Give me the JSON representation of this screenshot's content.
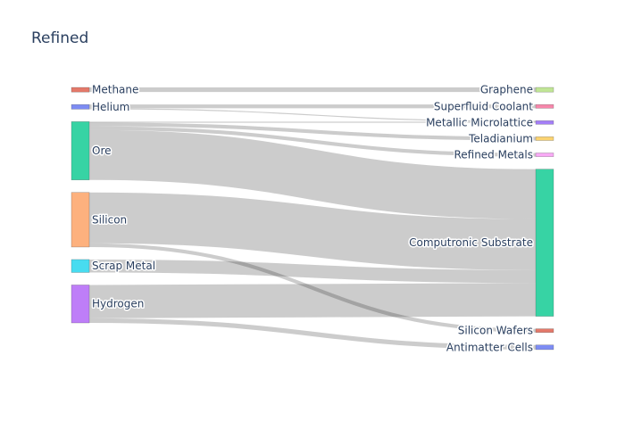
{
  "chart_data": {
    "type": "sankey",
    "title": "Refined",
    "nodes": [
      {
        "id": "methane",
        "label": "Methane",
        "column": 0,
        "color": "#e4796a"
      },
      {
        "id": "helium",
        "label": "Helium",
        "column": 0,
        "color": "#7d8cf3"
      },
      {
        "id": "ore",
        "label": "Ore",
        "column": 0,
        "color": "#37d3a4"
      },
      {
        "id": "silicon",
        "label": "Silicon",
        "column": 0,
        "color": "#fdb17e"
      },
      {
        "id": "scrap_metal",
        "label": "Scrap Metal",
        "column": 0,
        "color": "#48dcf0"
      },
      {
        "id": "hydrogen",
        "label": "Hydrogen",
        "column": 0,
        "color": "#be7ef8"
      },
      {
        "id": "graphene",
        "label": "Graphene",
        "column": 1,
        "color": "#c0e596"
      },
      {
        "id": "superfluid_coolant",
        "label": "Superfluid Coolant",
        "column": 1,
        "color": "#f786ab"
      },
      {
        "id": "metallic_microlattice",
        "label": "Metallic Microlattice",
        "column": 1,
        "color": "#a47ef7"
      },
      {
        "id": "teladianium",
        "label": "Teladianium",
        "column": 1,
        "color": "#fbd371"
      },
      {
        "id": "refined_metals",
        "label": "Refined Metals",
        "column": 1,
        "color": "#f8a9f5"
      },
      {
        "id": "computronic_substrate",
        "label": "Computronic Substrate",
        "column": 1,
        "color": "#37d3a4"
      },
      {
        "id": "silicon_wafers",
        "label": "Silicon Wafers",
        "column": 1,
        "color": "#e4796a"
      },
      {
        "id": "antimatter_cells",
        "label": "Antimatter Cells",
        "column": 1,
        "color": "#7d8cf3"
      }
    ],
    "links": [
      {
        "source": "methane",
        "target": "graphene",
        "value": 5
      },
      {
        "source": "helium",
        "target": "superfluid_coolant",
        "value": 4
      },
      {
        "source": "helium",
        "target": "metallic_microlattice",
        "value": 1
      },
      {
        "source": "ore",
        "target": "metallic_microlattice",
        "value": 1
      },
      {
        "source": "ore",
        "target": "teladianium",
        "value": 4
      },
      {
        "source": "ore",
        "target": "refined_metals",
        "value": 4
      },
      {
        "source": "ore",
        "target": "computronic_substrate",
        "value": 54
      },
      {
        "source": "silicon",
        "target": "computronic_substrate",
        "value": 55
      },
      {
        "source": "silicon",
        "target": "silicon_wafers",
        "value": 4
      },
      {
        "source": "scrap_metal",
        "target": "computronic_substrate",
        "value": 14
      },
      {
        "source": "hydrogen",
        "target": "computronic_substrate",
        "value": 36
      },
      {
        "source": "hydrogen",
        "target": "antimatter_cells",
        "value": 5
      }
    ]
  }
}
